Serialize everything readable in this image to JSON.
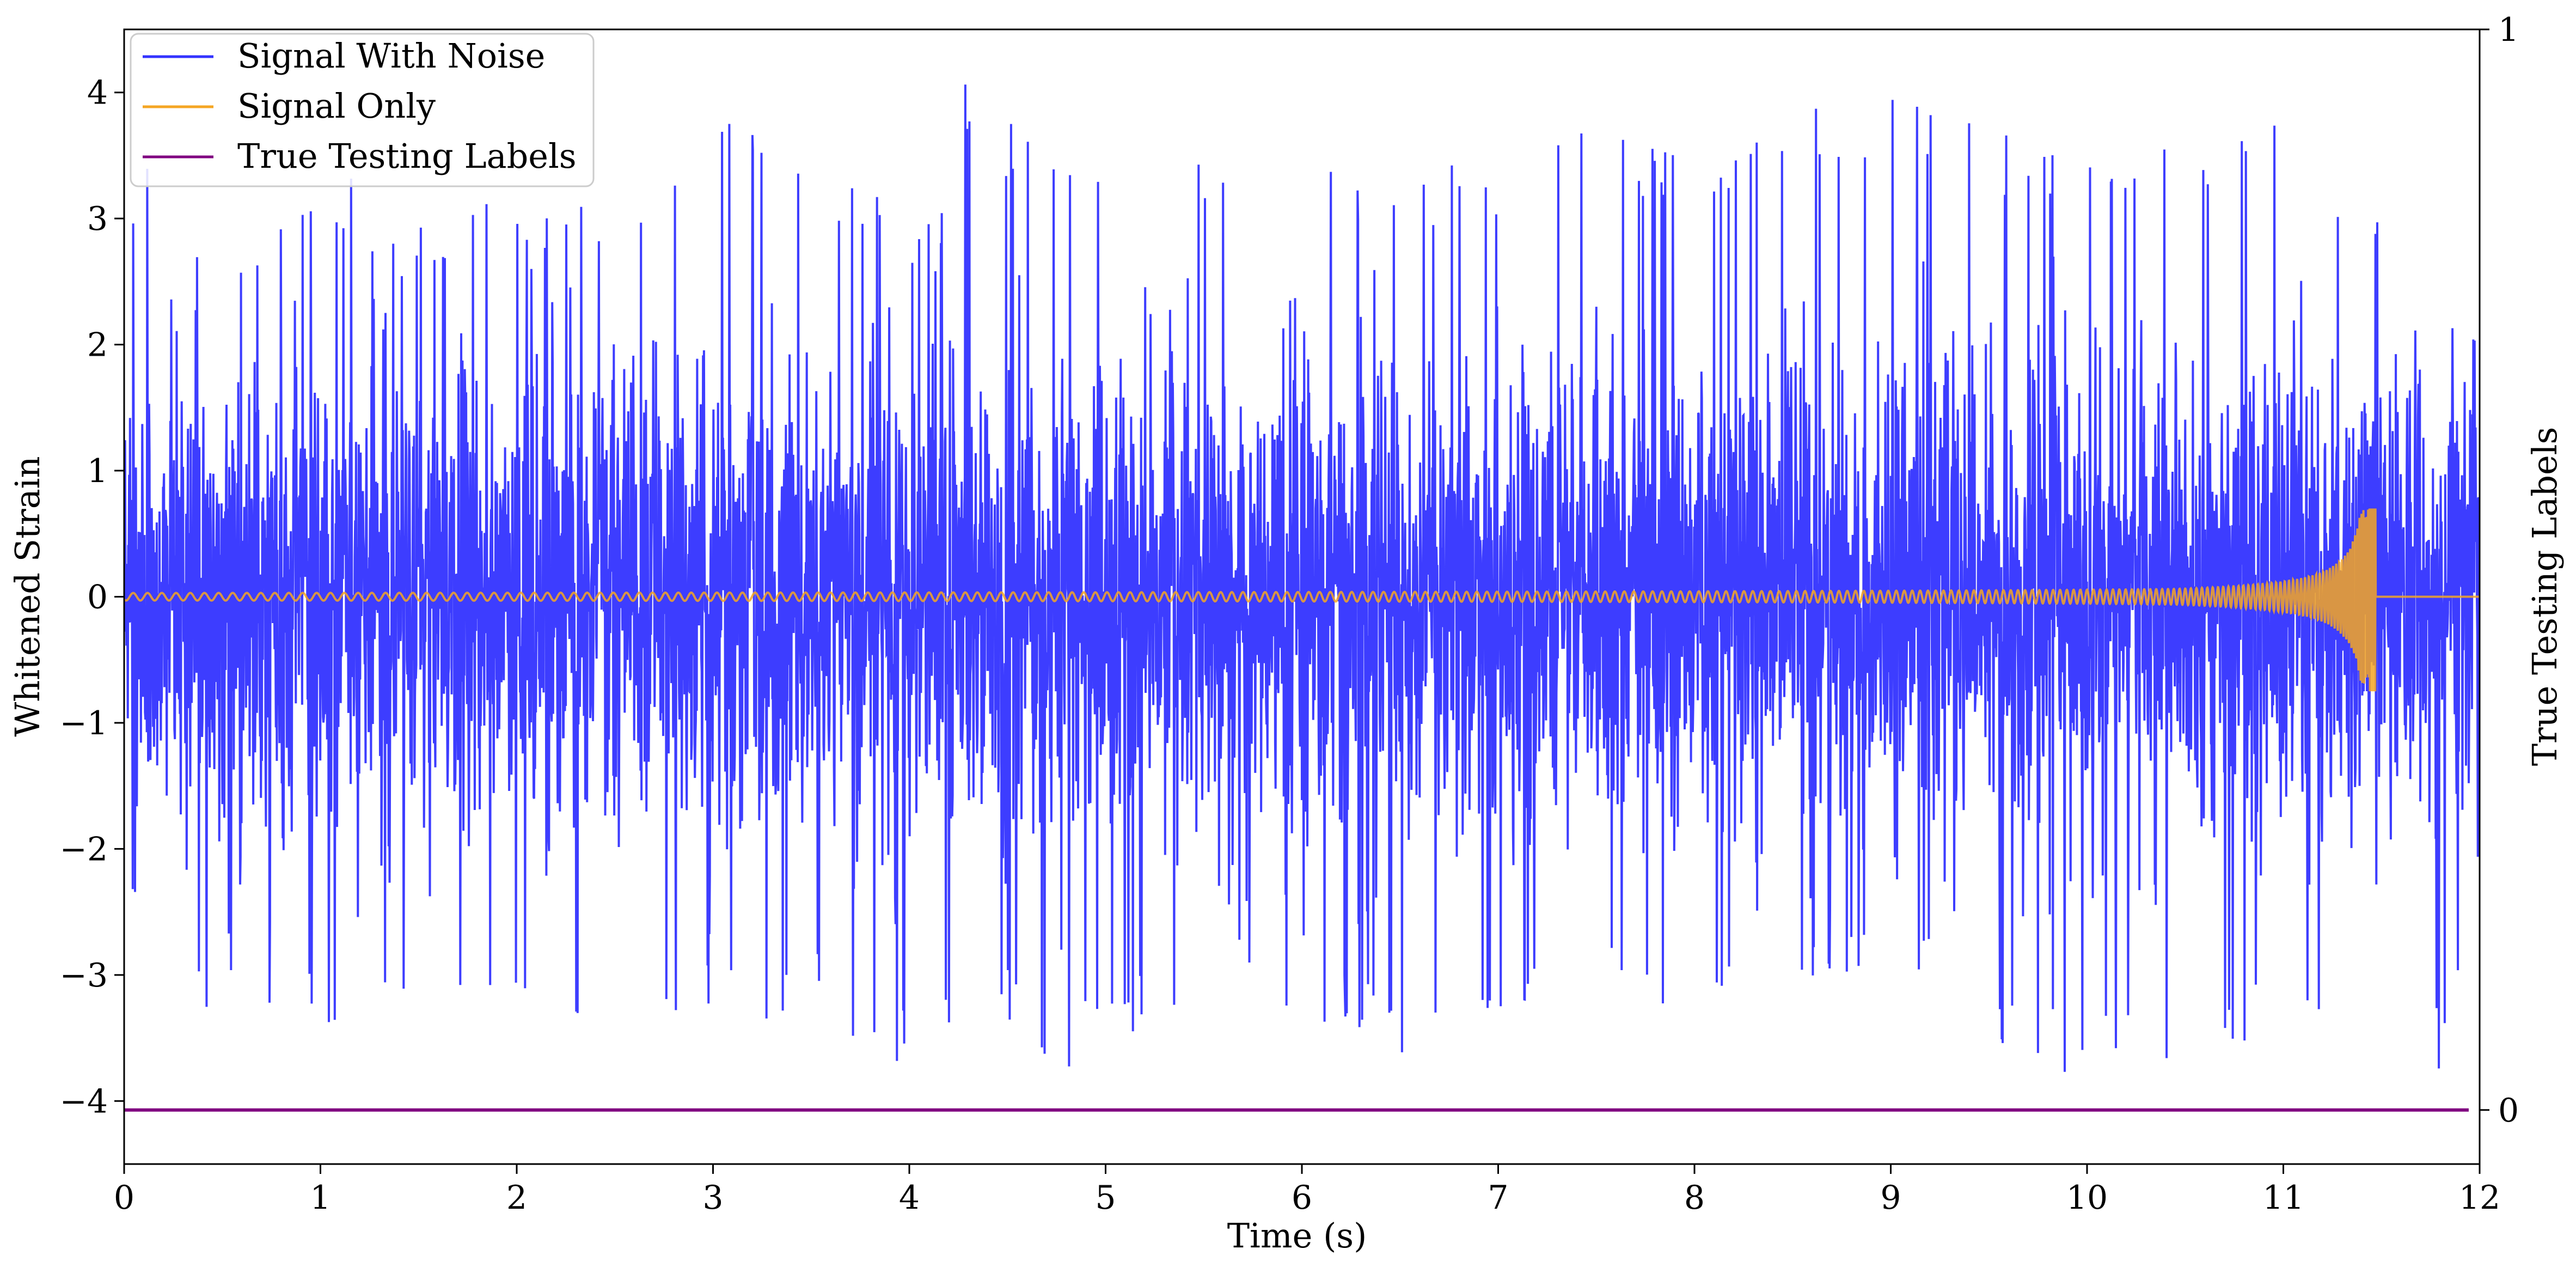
{
  "chart_data": {
    "type": "line",
    "xlabel": "Time (s)",
    "ylabel": "Whitened Strain",
    "y2label": "True Testing Labels",
    "xlim": [
      0,
      12
    ],
    "ylim": [
      -4.5,
      4.5
    ],
    "y2lim": [
      -0.05,
      1
    ],
    "x_ticks": [
      "0",
      "1",
      "2",
      "3",
      "4",
      "5",
      "6",
      "7",
      "8",
      "9",
      "10",
      "11",
      "12"
    ],
    "y_ticks": [
      "−4",
      "−3",
      "−2",
      "−1",
      "0",
      "1",
      "2",
      "3",
      "4"
    ],
    "y2_ticks": [
      "0",
      "1"
    ],
    "legend_position": "top-left",
    "grid": false,
    "series": [
      {
        "name": "Signal With Noise",
        "color": "#3333ff",
        "description_values": {
          "x": [
            0,
            0.05,
            0.08,
            0.4,
            1.23,
            1.5,
            2.0,
            2.7,
            3.0,
            3.5,
            4.15,
            4.24,
            4.8,
            5.5,
            6.0,
            6.66,
            7.0,
            7.41,
            8.0,
            9.05,
            9.72,
            10.6,
            10.96,
            11.5,
            11.68,
            12.0
          ],
          "y_max": [
            2.3,
            3.4,
            3.7,
            2.9,
            3.4,
            3.1,
            3.2,
            3.2,
            4.0,
            3.6,
            2.9,
            4.2,
            3.5,
            3.5,
            3.4,
            3.5,
            3.8,
            4.0,
            3.5,
            4.2,
            3.6,
            3.6,
            4.1,
            3.0,
            2.4,
            2.0
          ],
          "y_min": [
            -2.7,
            -2.6,
            -3.1,
            -3.3,
            -3.6,
            -3.0,
            -3.2,
            -3.6,
            -3.4,
            -3.3,
            -3.95,
            -3.0,
            -3.8,
            -3.1,
            -3.3,
            -3.75,
            -3.3,
            -3.1,
            -3.3,
            -3.0,
            -3.8,
            -3.95,
            -3.2,
            -3.6,
            -4.2,
            -3.0
          ]
        }
      },
      {
        "name": "Signal Only",
        "color": "#f5a623",
        "chirp_merger_time": 11.45,
        "peak_amplitude": 0.7,
        "min_amplitude": -0.75,
        "early_amplitude": 0.03,
        "zero_after": 11.47
      },
      {
        "name": "True Testing Labels",
        "color": "#800080",
        "x": [
          0,
          12
        ],
        "y2": [
          0,
          0
        ]
      }
    ]
  }
}
